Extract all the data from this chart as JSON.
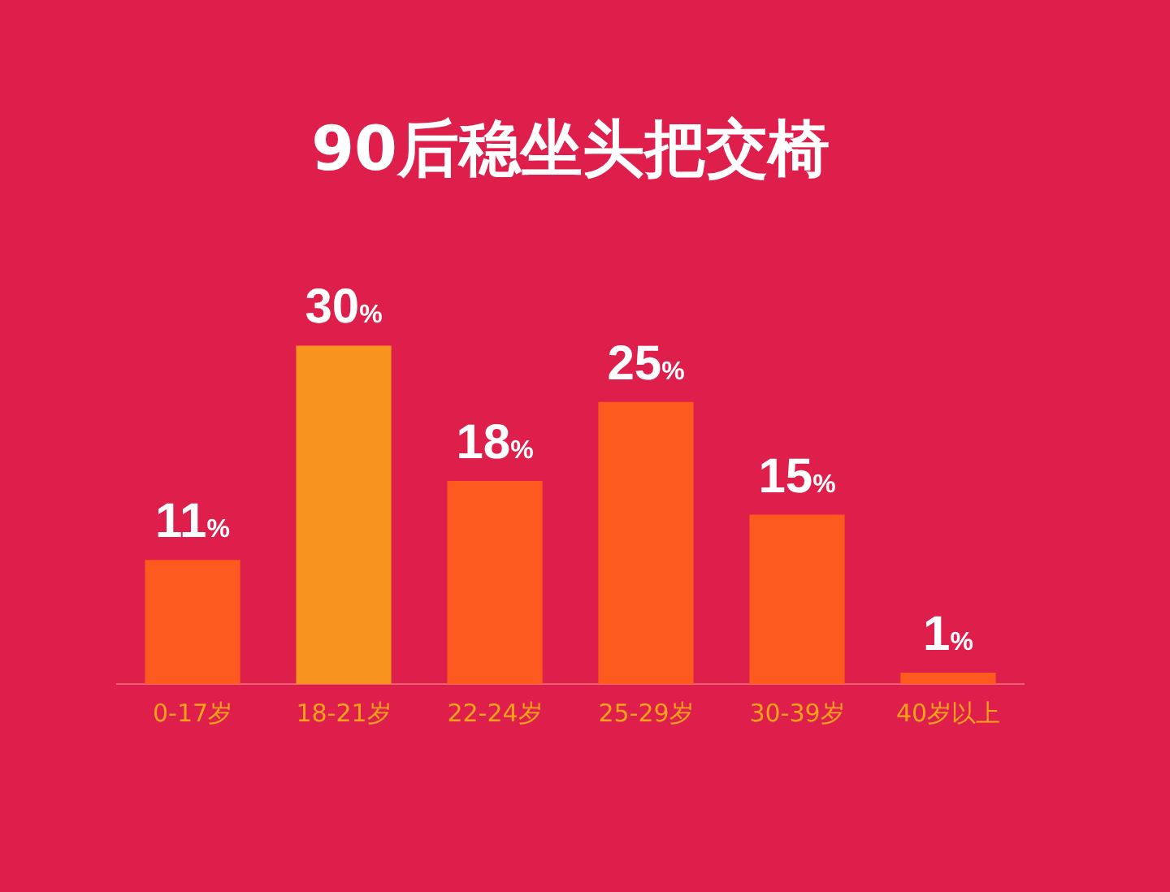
{
  "chart_data": {
    "type": "bar",
    "title": "90后稳坐头把交椅",
    "categories": [
      "0-17岁",
      "18-21岁",
      "22-24岁",
      "25-29岁",
      "30-39岁",
      "40岁以上"
    ],
    "values": [
      11,
      30,
      18,
      25,
      15,
      1
    ],
    "value_labels": [
      "11%",
      "30%",
      "18%",
      "25%",
      "15%",
      "1%"
    ],
    "colors": [
      "#fc5a1f",
      "#f7931e",
      "#fc5a1f",
      "#fc5a1f",
      "#fc5a1f",
      "#fc5a1f"
    ],
    "grid": false,
    "legend": false,
    "tick_labels": "x"
  }
}
